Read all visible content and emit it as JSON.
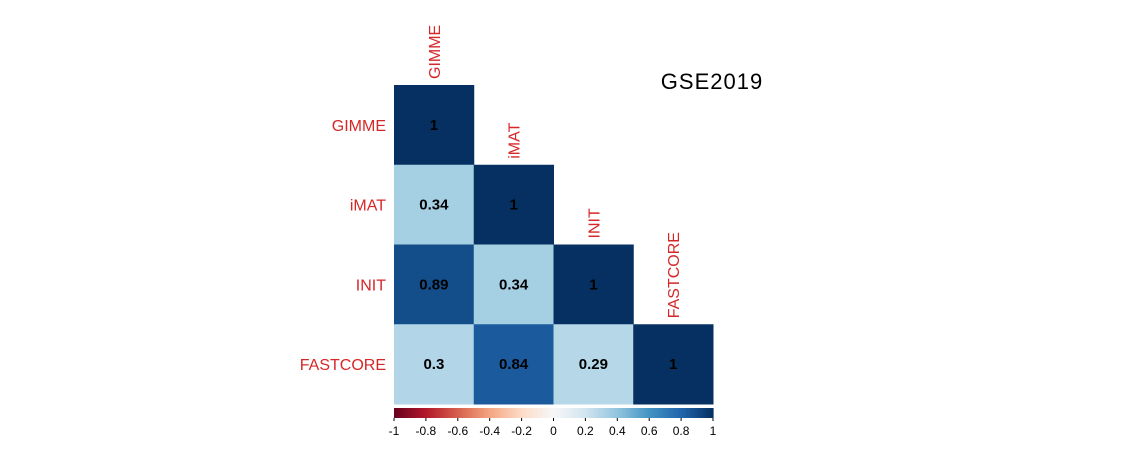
{
  "chart_data": {
    "type": "heatmap",
    "title": "GSE2019",
    "variables": [
      "GIMME",
      "iMAT",
      "INIT",
      "FASTCORE"
    ],
    "matrix": [
      [
        1,
        null,
        null,
        null
      ],
      [
        0.34,
        1,
        null,
        null
      ],
      [
        0.89,
        0.34,
        1,
        null
      ],
      [
        0.3,
        0.84,
        0.29,
        1
      ]
    ],
    "cell_labels": [
      [
        "1",
        "",
        "",
        ""
      ],
      [
        "0.34",
        "1",
        "",
        ""
      ],
      [
        "0.89",
        "0.34",
        "1",
        ""
      ],
      [
        "0.3",
        "0.84",
        "0.29",
        "1"
      ]
    ],
    "triangle": "lower",
    "color_scale": {
      "range": [
        -1,
        1
      ],
      "stops": [
        "#67001f",
        "#b2182b",
        "#d6604d",
        "#f4a582",
        "#fddbc7",
        "#f7f7f7",
        "#d1e5f0",
        "#92c5de",
        "#4393c3",
        "#2166ac",
        "#053061"
      ]
    },
    "colorbar_ticks": [
      "-1",
      "-0.8",
      "-0.6",
      "-0.4",
      "-0.2",
      "0",
      "0.2",
      "0.4",
      "0.6",
      "0.8",
      "1"
    ],
    "label_color": "#d62728"
  }
}
